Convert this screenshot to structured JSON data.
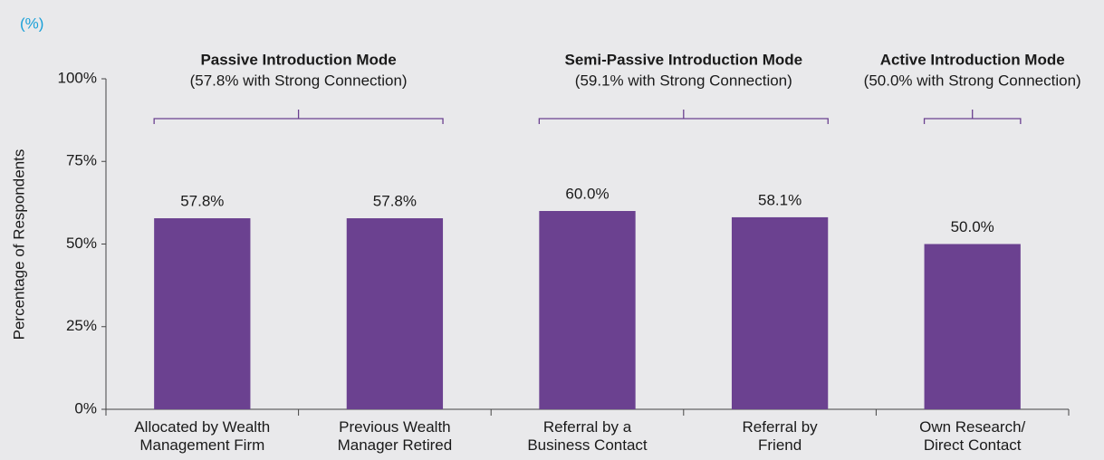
{
  "chart_data": {
    "type": "bar",
    "unit_label": "(%)",
    "y_label": "Percentage of Respondents",
    "categories": [
      "Allocated by Wealth\nManagement Firm",
      "Previous Wealth\nManager Retired",
      "Referral by a\nBusiness Contact",
      "Referral by\nFriend",
      "Own Research/\nDirect Contact"
    ],
    "values": [
      57.8,
      57.8,
      60.0,
      58.1,
      50.0
    ],
    "value_labels": [
      "57.8%",
      "57.8%",
      "60.0%",
      "58.1%",
      "50.0%"
    ],
    "color": "#6b4190",
    "ylim": [
      0,
      100
    ],
    "yticks": [
      {
        "value": 0,
        "label": "0%"
      },
      {
        "value": 25,
        "label": "25%"
      },
      {
        "value": 50,
        "label": "50%"
      },
      {
        "value": 75,
        "label": "75%"
      },
      {
        "value": 100,
        "label": "100%"
      }
    ],
    "groups": [
      {
        "title": "Passive Introduction Mode",
        "subtitle": "(57.8% with Strong Connection)"
      },
      {
        "title": "Semi-Passive Introduction Mode",
        "subtitle": "(59.1% with Strong Connection)"
      },
      {
        "title": "Active Introduction Mode",
        "subtitle": "(50.0% with Strong Connection)"
      }
    ]
  }
}
